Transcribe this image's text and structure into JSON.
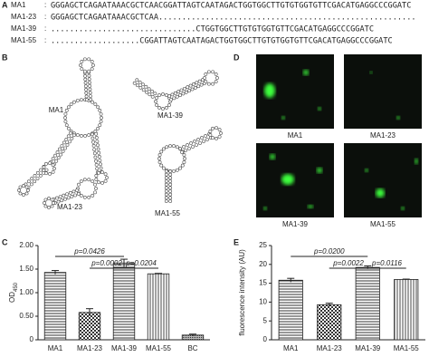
{
  "panel_labels": [
    "A",
    "B",
    "C",
    "D",
    "E"
  ],
  "sequences": [
    {
      "name": "MA1",
      "colon": ":",
      "seq": "GGGAGCTCAGAATAAACGCTCAACGGATTAGTCAATAGACTGGTGGCTTGTGTGGTGTTCGACATGAGGCCCGGATC"
    },
    {
      "name": "MA1-23",
      "colon": ":",
      "seq": "GGGAGCTCAGAATAAACGCTCAA......................................................."
    },
    {
      "name": "MA1-39",
      "colon": ":",
      "seq": "...............................CTGGTGGCTTGTGTGGTGTTCGACATGAGGCCCGGATC"
    },
    {
      "name": "MA1-55",
      "colon": ":",
      "seq": "...................CGGATTAGTCAATAGACTGGTGGCTTGTGTGGTGTTCGACATGAGGCCCGGATC"
    }
  ],
  "structures": [
    "MA1",
    "MA1-39",
    "MA1-23",
    "MA1-55"
  ],
  "images": [
    "MA1",
    "MA1-23",
    "MA1-39",
    "MA1-55"
  ],
  "chart_data": [
    {
      "type": "bar",
      "ylabel": "OD",
      "ylabel_subscript": "450",
      "categories": [
        "MA1",
        "MA1-23",
        "MA1-39",
        "MA1-55",
        "BC"
      ],
      "values": [
        1.43,
        0.58,
        1.63,
        1.4,
        0.1
      ],
      "errors": [
        0.04,
        0.08,
        0.08,
        0.01,
        0.02
      ],
      "patterns": [
        "horizontal",
        "checker",
        "horizontal",
        "vertical",
        "dots"
      ],
      "ylim": [
        0,
        2.0
      ],
      "yticks": [
        0,
        {
          "value": 0.5,
          "label": "0.50"
        },
        {
          "value": 1.0,
          "label": "1.00"
        },
        {
          "value": 1.5,
          "label": "1.50"
        },
        {
          "value": 2.0,
          "label": "2.00"
        }
      ],
      "annotations": [
        {
          "text": "p=0.0426",
          "from": "MA1",
          "to": "MA1-39"
        },
        {
          "text": "p=0.0002",
          "from": "MA1-23",
          "to": "MA1-39"
        },
        {
          "text": "p=0.0204",
          "from": "MA1-39",
          "to": "MA1-55"
        }
      ]
    },
    {
      "type": "bar",
      "ylabel": "fluorescence intensity (AU)",
      "categories": [
        "MA1",
        "MA1-23",
        "MA1-39",
        "MA1-55"
      ],
      "values": [
        15.8,
        9.3,
        19.2,
        16.0
      ],
      "errors": [
        0.5,
        0.4,
        0.4,
        0.1
      ],
      "patterns": [
        "horizontal",
        "checker",
        "horizontal",
        "vertical"
      ],
      "ylim": [
        0,
        25
      ],
      "yticks": [
        0,
        5,
        10,
        15,
        20,
        25
      ],
      "annotations": [
        {
          "text": "p=0.0200",
          "from": "MA1",
          "to": "MA1-39"
        },
        {
          "text": "p=0.0022",
          "from": "MA1-23",
          "to": "MA1-39"
        },
        {
          "text": "p=0.0116",
          "from": "MA1-39",
          "to": "MA1-55"
        }
      ]
    }
  ]
}
